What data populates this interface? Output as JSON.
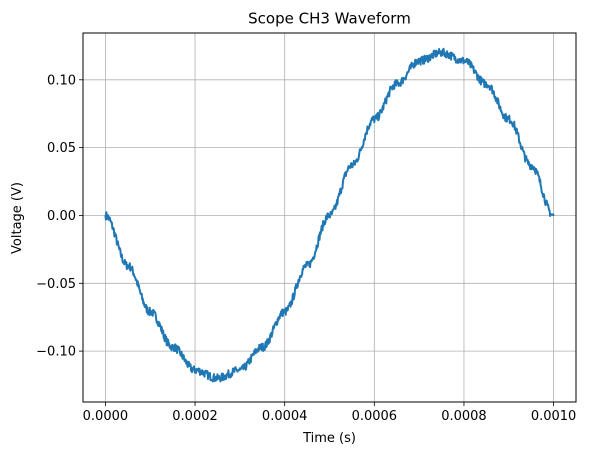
{
  "chart_data": {
    "type": "line",
    "title": "Scope CH3 Waveform",
    "xlabel": "Time (s)",
    "ylabel": "Voltage (V)",
    "xlim": [
      -5e-05,
      0.00105
    ],
    "ylim": [
      -0.1375,
      0.1345
    ],
    "grid": true,
    "legend": "none",
    "x_ticks": [
      0.0,
      0.0002,
      0.0004,
      0.0006,
      0.0008,
      0.001
    ],
    "x_tick_labels": [
      "0.0000",
      "0.0002",
      "0.0004",
      "0.0006",
      "0.0008",
      "0.0010"
    ],
    "y_ticks": [
      -0.1,
      -0.05,
      0.0,
      0.05,
      0.1
    ],
    "y_tick_labels": [
      "−0.10",
      "−0.05",
      "0.00",
      "0.05",
      "0.10"
    ],
    "colors": {
      "series": "#1f77b4",
      "grid": "#b0b0b0",
      "axes": "#000000"
    },
    "series": [
      {
        "x": [
          0.0,
          5e-05,
          0.0001,
          0.00015,
          0.0002,
          0.00025,
          0.0003,
          0.00035,
          0.0004,
          0.00045,
          0.0005,
          0.00055,
          0.0006,
          0.00065,
          0.0007,
          0.00075,
          0.0008,
          0.00085,
          0.0009,
          0.00095,
          0.001
        ],
        "values": [
          0.0,
          -0.037,
          -0.071,
          -0.097,
          -0.114,
          -0.12,
          -0.114,
          -0.097,
          -0.071,
          -0.037,
          0.0,
          0.037,
          0.071,
          0.097,
          0.114,
          0.12,
          0.114,
          0.097,
          0.071,
          0.037,
          0.0
        ]
      }
    ]
  }
}
